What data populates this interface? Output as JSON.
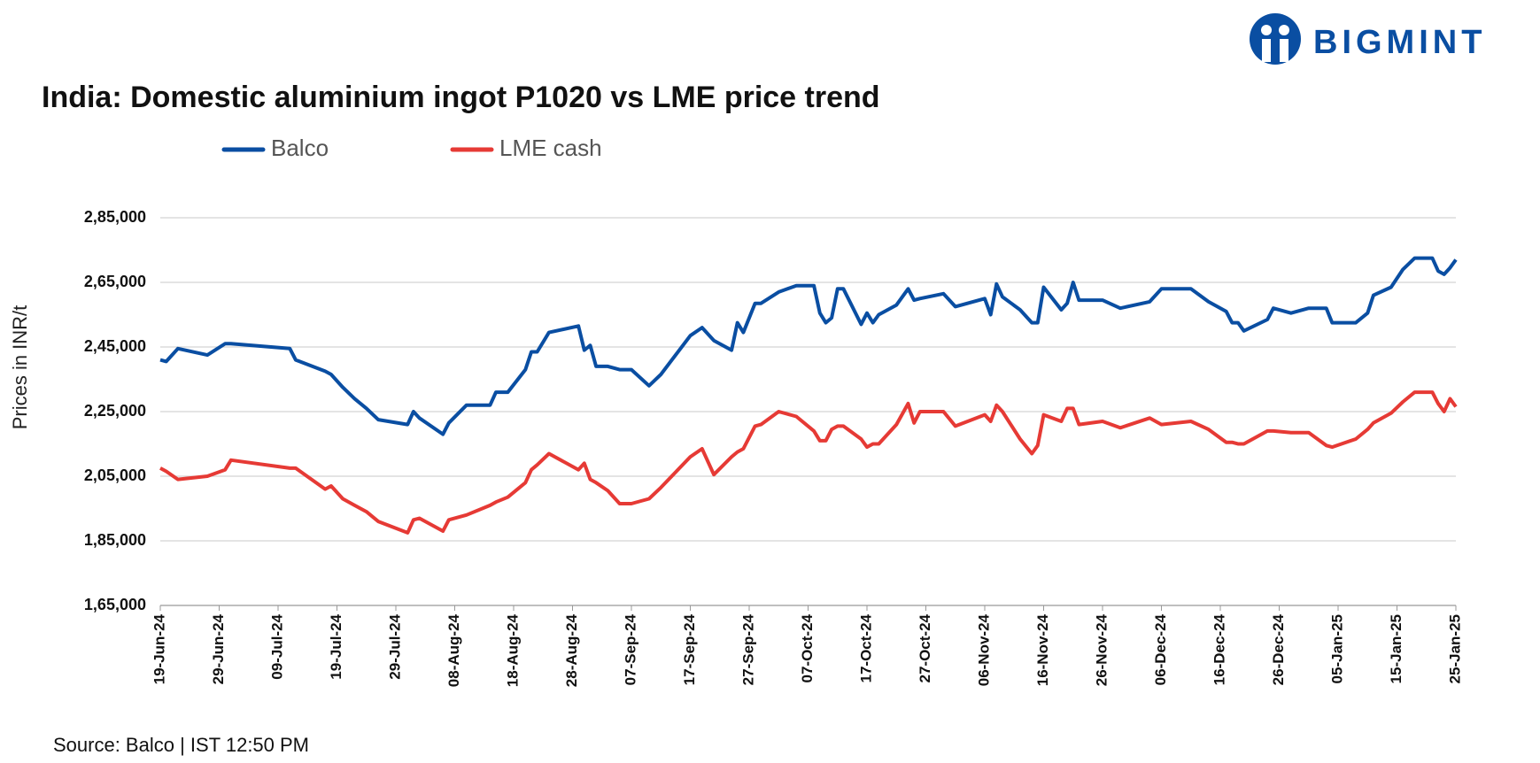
{
  "brand": "BIGMINT",
  "source": "Source: Balco | IST 12:50 PM",
  "chart_data": {
    "type": "line",
    "title": "India: Domestic aluminium ingot P1020 vs LME price trend",
    "y_label": "Prices in INR/t",
    "x": [
      "2024-06-19",
      "2024-06-20",
      "2024-06-22",
      "2024-06-27",
      "2024-06-30",
      "2024-07-01",
      "2024-07-11",
      "2024-07-12",
      "2024-07-17",
      "2024-07-18",
      "2024-07-20",
      "2024-07-22",
      "2024-07-24",
      "2024-07-26",
      "2024-07-31",
      "2024-08-01",
      "2024-08-02",
      "2024-08-06",
      "2024-08-07",
      "2024-08-10",
      "2024-08-14",
      "2024-08-15",
      "2024-08-17",
      "2024-08-20",
      "2024-08-21",
      "2024-08-22",
      "2024-08-24",
      "2024-08-29",
      "2024-08-30",
      "2024-08-31",
      "2024-09-01",
      "2024-09-03",
      "2024-09-05",
      "2024-09-07",
      "2024-09-10",
      "2024-09-12",
      "2024-09-17",
      "2024-09-19",
      "2024-09-21",
      "2024-09-24",
      "2024-09-25",
      "2024-09-26",
      "2024-09-28",
      "2024-09-29",
      "2024-10-02",
      "2024-10-05",
      "2024-10-08",
      "2024-10-09",
      "2024-10-10",
      "2024-10-11",
      "2024-10-12",
      "2024-10-13",
      "2024-10-16",
      "2024-10-17",
      "2024-10-18",
      "2024-10-19",
      "2024-10-22",
      "2024-10-24",
      "2024-10-25",
      "2024-10-26",
      "2024-10-30",
      "2024-11-01",
      "2024-11-06",
      "2024-11-07",
      "2024-11-08",
      "2024-11-09",
      "2024-11-12",
      "2024-11-14",
      "2024-11-15",
      "2024-11-16",
      "2024-11-19",
      "2024-11-20",
      "2024-11-21",
      "2024-11-22",
      "2024-11-26",
      "2024-11-29",
      "2024-12-04",
      "2024-12-06",
      "2024-12-11",
      "2024-12-14",
      "2024-12-17",
      "2024-12-18",
      "2024-12-19",
      "2024-12-20",
      "2024-12-24",
      "2024-12-25",
      "2024-12-28",
      "2024-12-31",
      "2025-01-03",
      "2025-01-04",
      "2025-01-08",
      "2025-01-10",
      "2025-01-11",
      "2025-01-14",
      "2025-01-16",
      "2025-01-18",
      "2025-01-21",
      "2025-01-22",
      "2025-01-23",
      "2025-01-24",
      "2025-01-25"
    ],
    "series": [
      {
        "name": "Balco",
        "color": "#0a4ea2",
        "values": [
          241000,
          240500,
          244500,
          242500,
          246000,
          246000,
          244500,
          241000,
          237500,
          236500,
          232500,
          229000,
          226000,
          222500,
          221000,
          225000,
          223000,
          218000,
          221500,
          227000,
          227000,
          231000,
          231000,
          238000,
          243500,
          243500,
          249500,
          251500,
          244000,
          245500,
          239000,
          239000,
          238000,
          238000,
          233000,
          236500,
          248500,
          251000,
          247000,
          244000,
          252500,
          249500,
          258500,
          258500,
          262000,
          264000,
          264000,
          255500,
          252500,
          254000,
          263000,
          263000,
          252000,
          255500,
          252500,
          255000,
          258000,
          263000,
          259500,
          260000,
          261500,
          257500,
          260000,
          255000,
          264500,
          260500,
          256500,
          252500,
          252500,
          263500,
          256500,
          258500,
          265000,
          259500,
          259500,
          257000,
          259000,
          263000,
          263000,
          259000,
          256000,
          252500,
          252500,
          250000,
          253500,
          257000,
          255500,
          257000,
          257000,
          252500,
          252500,
          255500,
          261000,
          263500,
          269000,
          272500,
          272500,
          268500,
          267500,
          269500,
          272000
        ]
      },
      {
        "name": "LME cash",
        "color": "#e63a35",
        "values": [
          207500,
          206500,
          204000,
          205000,
          207000,
          210000,
          207500,
          207500,
          201000,
          202000,
          198000,
          196000,
          194000,
          191000,
          187500,
          191500,
          192000,
          188000,
          191500,
          193000,
          196000,
          197000,
          198500,
          203000,
          207000,
          208500,
          212000,
          207000,
          209000,
          204000,
          203000,
          200500,
          196500,
          196500,
          198000,
          201500,
          211000,
          213500,
          205500,
          211000,
          212500,
          213500,
          220500,
          221000,
          225000,
          223500,
          219000,
          216000,
          216000,
          219500,
          220500,
          220500,
          216500,
          214000,
          215000,
          215000,
          221000,
          227500,
          221500,
          225000,
          225000,
          220500,
          224000,
          222000,
          227000,
          225000,
          216500,
          212000,
          214500,
          224000,
          222000,
          226000,
          226000,
          221000,
          222000,
          220000,
          223000,
          221000,
          222000,
          219500,
          215500,
          215500,
          215000,
          215000,
          219000,
          219000,
          218500,
          218500,
          214500,
          214000,
          216500,
          219500,
          221500,
          224500,
          228000,
          231000,
          231000,
          227500,
          225000,
          229000,
          226500
        ]
      }
    ],
    "xlim": [
      "2024-06-19",
      "2025-01-25"
    ],
    "xticks": [
      {
        "value": "2024-06-19",
        "label": "19-Jun-24"
      },
      {
        "value": "2024-06-29",
        "label": "29-Jun-24"
      },
      {
        "value": "2024-07-09",
        "label": "09-Jul-24"
      },
      {
        "value": "2024-07-19",
        "label": "19-Jul-24"
      },
      {
        "value": "2024-07-29",
        "label": "29-Jul-24"
      },
      {
        "value": "2024-08-08",
        "label": "08-Aug-24"
      },
      {
        "value": "2024-08-18",
        "label": "18-Aug-24"
      },
      {
        "value": "2024-08-28",
        "label": "28-Aug-24"
      },
      {
        "value": "2024-09-07",
        "label": "07-Sep-24"
      },
      {
        "value": "2024-09-17",
        "label": "17-Sep-24"
      },
      {
        "value": "2024-09-27",
        "label": "27-Sep-24"
      },
      {
        "value": "2024-10-07",
        "label": "07-Oct-24"
      },
      {
        "value": "2024-10-17",
        "label": "17-Oct-24"
      },
      {
        "value": "2024-10-27",
        "label": "27-Oct-24"
      },
      {
        "value": "2024-11-06",
        "label": "06-Nov-24"
      },
      {
        "value": "2024-11-16",
        "label": "16-Nov-24"
      },
      {
        "value": "2024-11-26",
        "label": "26-Nov-24"
      },
      {
        "value": "2024-12-06",
        "label": "06-Dec-24"
      },
      {
        "value": "2024-12-16",
        "label": "16-Dec-24"
      },
      {
        "value": "2024-12-26",
        "label": "26-Dec-24"
      },
      {
        "value": "2025-01-05",
        "label": "05-Jan-25"
      },
      {
        "value": "2025-01-15",
        "label": "15-Jan-25"
      },
      {
        "value": "2025-01-25",
        "label": "25-Jan-25"
      }
    ],
    "ylim": [
      165000,
      285000
    ],
    "yticks": [
      {
        "value": 165000,
        "label": "1,65,000"
      },
      {
        "value": 185000,
        "label": "1,85,000"
      },
      {
        "value": 205000,
        "label": "2,05,000"
      },
      {
        "value": 225000,
        "label": "2,25,000"
      },
      {
        "value": 245000,
        "label": "2,45,000"
      },
      {
        "value": 265000,
        "label": "2,65,000"
      },
      {
        "value": 285000,
        "label": "2,85,000"
      }
    ],
    "grid": true
  }
}
